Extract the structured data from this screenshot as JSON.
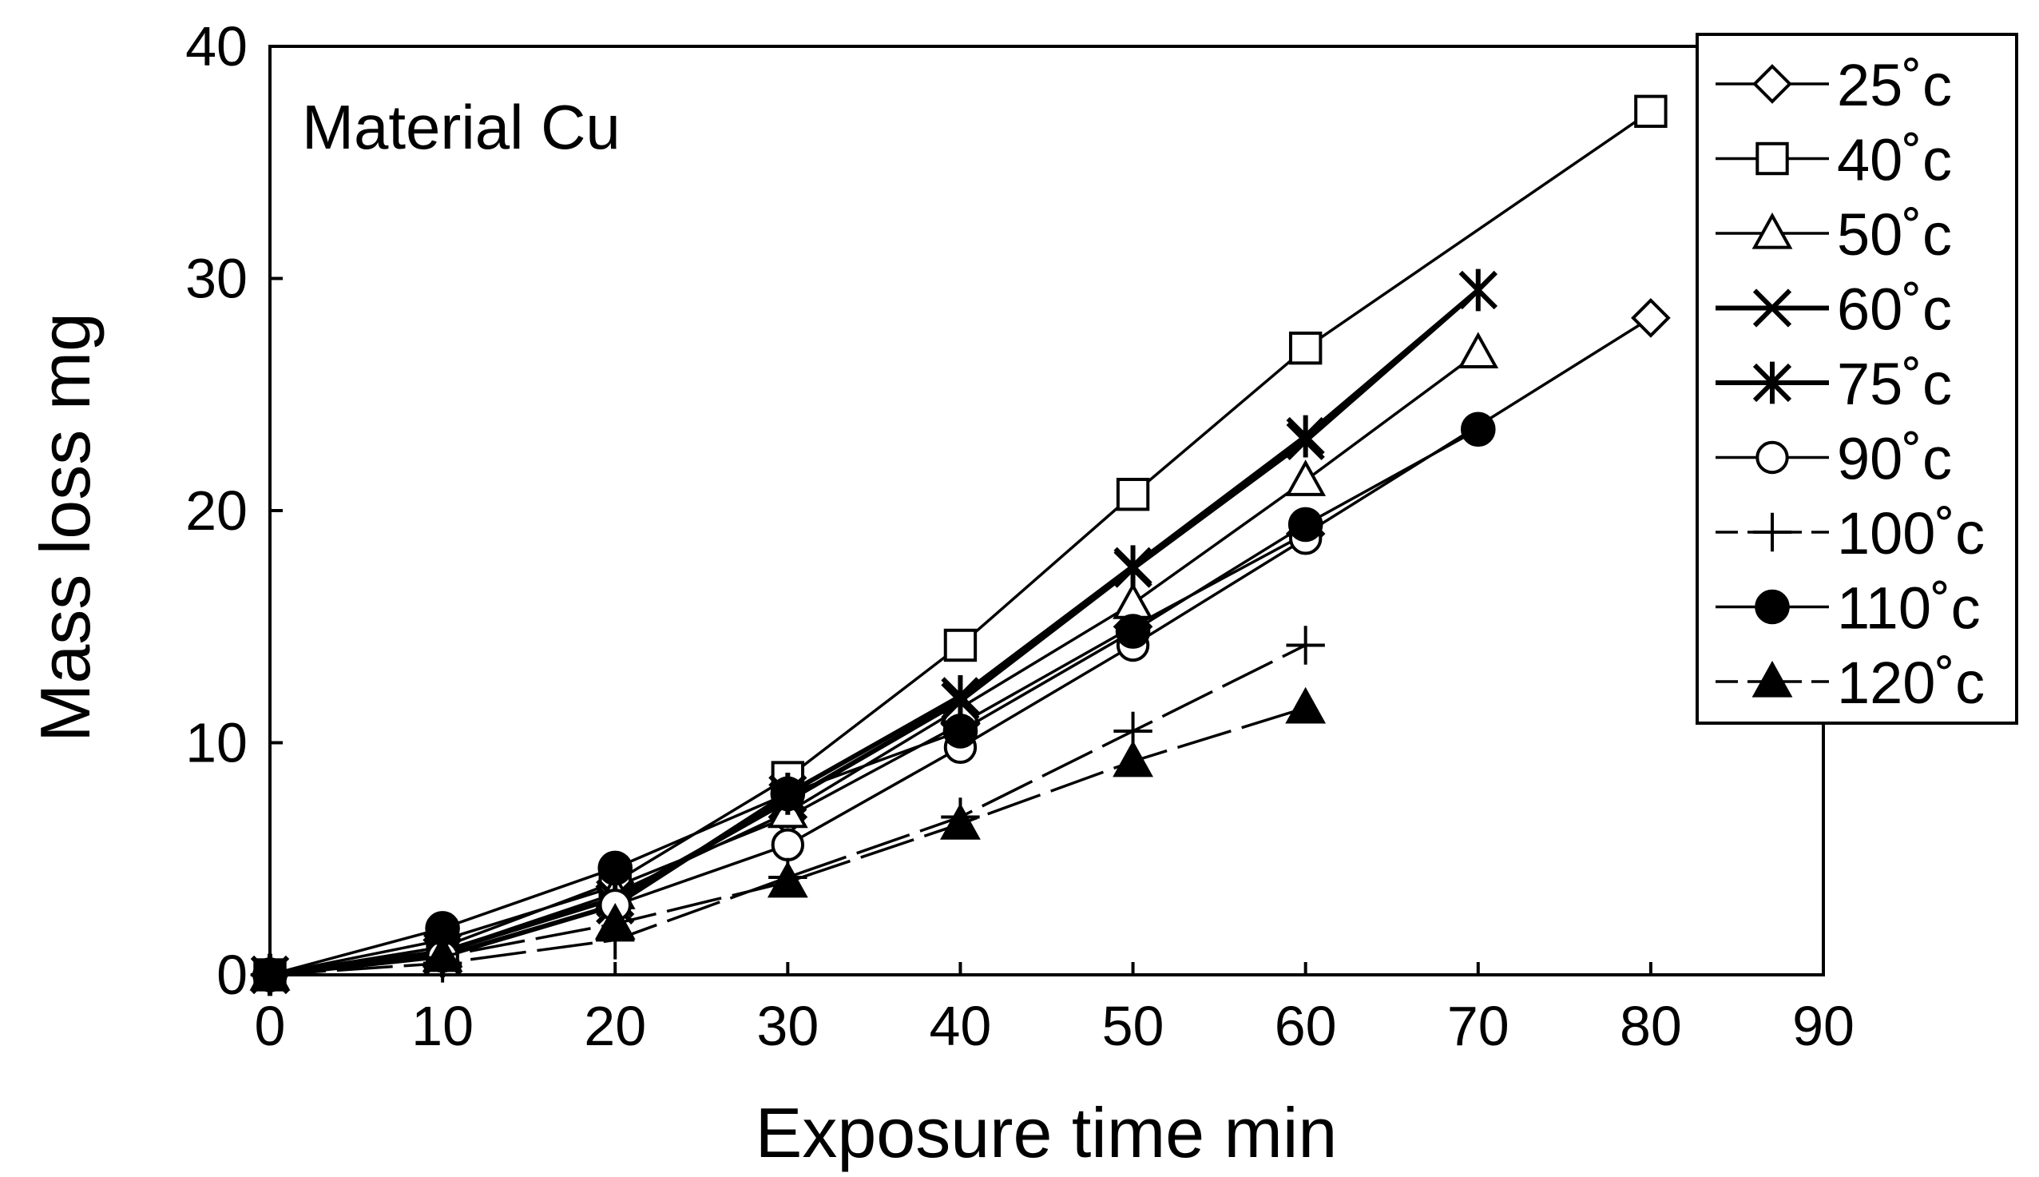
{
  "chart_data": {
    "type": "line",
    "title": "",
    "annotation": "Material Cu",
    "xlabel": "Exposure time min",
    "ylabel": "Mass loss mg",
    "xlim": [
      0,
      90
    ],
    "ylim": [
      0,
      40
    ],
    "xticks": [
      0,
      10,
      20,
      30,
      40,
      50,
      60,
      70,
      80,
      90
    ],
    "yticks": [
      0,
      10,
      20,
      30,
      40
    ],
    "grid": false,
    "legend_position": "top-right",
    "series": [
      {
        "name": "25˚c",
        "marker": "diamond-open",
        "line": "solid",
        "x": [
          0,
          10,
          20,
          30,
          40,
          50,
          60,
          80
        ],
        "y": [
          0,
          1.5,
          3.8,
          6.8,
          10.8,
          15.0,
          19.0,
          28.3
        ]
      },
      {
        "name": "40˚c",
        "marker": "square-open",
        "line": "solid",
        "x": [
          0,
          10,
          20,
          30,
          40,
          50,
          60,
          80
        ],
        "y": [
          0,
          1.2,
          4.0,
          8.5,
          14.2,
          20.7,
          27.0,
          37.2
        ]
      },
      {
        "name": "50˚c",
        "marker": "triangle-open",
        "line": "solid",
        "x": [
          0,
          10,
          20,
          30,
          40,
          50,
          60,
          70
        ],
        "y": [
          0,
          1.0,
          3.5,
          7.0,
          11.5,
          16.0,
          21.3,
          26.8
        ]
      },
      {
        "name": "60˚c",
        "marker": "x",
        "line": "solid-thick",
        "x": [
          0,
          10,
          20,
          30,
          40,
          50,
          60,
          70
        ],
        "y": [
          0,
          1.0,
          3.3,
          7.5,
          11.8,
          17.5,
          23.0,
          29.5
        ]
      },
      {
        "name": "75˚c",
        "marker": "asterisk",
        "line": "solid-thick",
        "x": [
          0,
          10,
          20,
          30,
          40,
          50,
          60,
          70
        ],
        "y": [
          0,
          0.8,
          3.0,
          7.8,
          12.0,
          17.6,
          23.2,
          29.5
        ]
      },
      {
        "name": "90˚c",
        "marker": "circle-open",
        "line": "solid",
        "x": [
          0,
          10,
          20,
          30,
          40,
          50,
          60
        ],
        "y": [
          0,
          0.8,
          3.0,
          5.6,
          9.8,
          14.2,
          18.8
        ]
      },
      {
        "name": "100˚c",
        "marker": "plus",
        "line": "dashed",
        "x": [
          0,
          10,
          20,
          30,
          40,
          50,
          60
        ],
        "y": [
          0,
          0.5,
          1.5,
          4.2,
          6.8,
          10.5,
          14.2
        ]
      },
      {
        "name": "110˚c",
        "marker": "circle-filled",
        "line": "solid",
        "x": [
          0,
          10,
          20,
          30,
          40,
          50,
          60,
          70
        ],
        "y": [
          0,
          2.0,
          4.6,
          7.8,
          10.5,
          14.8,
          19.4,
          23.5
        ]
      },
      {
        "name": "120˚c",
        "marker": "triangle-filled",
        "line": "dashed",
        "x": [
          0,
          10,
          20,
          30,
          40,
          50,
          60
        ],
        "y": [
          0,
          0.8,
          2.2,
          4.0,
          6.5,
          9.2,
          11.5
        ]
      }
    ]
  }
}
